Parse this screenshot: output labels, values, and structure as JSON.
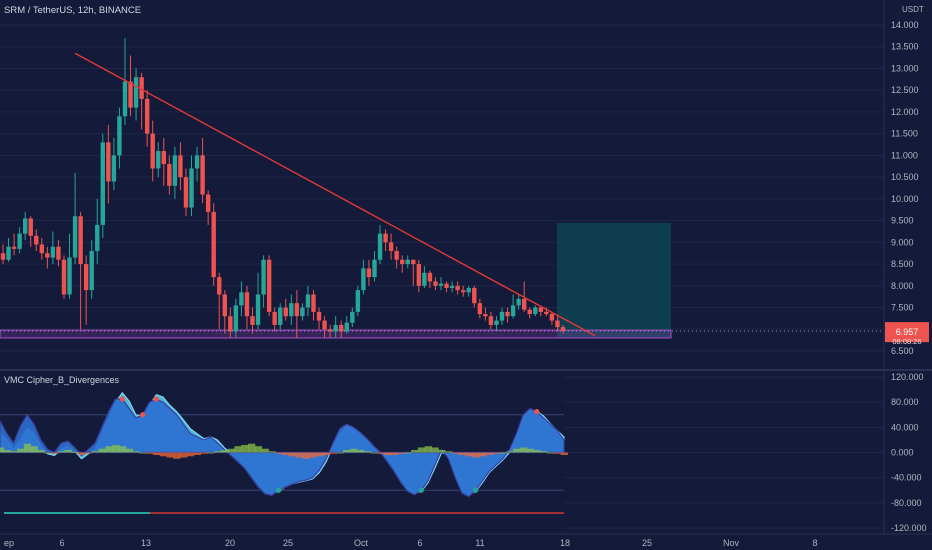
{
  "header": {
    "title": "SRM / TetherUS, 12h, BINANCE",
    "currency": "USDT",
    "indicator_title": "VMC Cipher_B_Divergences"
  },
  "price_axis": {
    "ticks": [
      "14.000",
      "13.500",
      "13.000",
      "12.500",
      "12.000",
      "11.500",
      "11.000",
      "10.500",
      "10.000",
      "9.500",
      "9.000",
      "8.500",
      "8.000",
      "7.500",
      "7.000",
      "6.500"
    ],
    "current_price": "6.957",
    "countdown": "08:08:26"
  },
  "indicator_axis": {
    "ticks": [
      "120.000",
      "80.000",
      "40.000",
      "0.000",
      "-40.000",
      "-80.000",
      "-120.000"
    ]
  },
  "time_axis": {
    "ticks": [
      "ep",
      "6",
      "13",
      "20",
      "25",
      "Oct",
      "6",
      "11",
      "18",
      "25",
      "Nov",
      "8"
    ]
  },
  "colors": {
    "background": "#131a3a",
    "up": "#26a69a",
    "down": "#ef5350",
    "trendline": "#e53935",
    "support_zone": "#b04fd0",
    "target_zone": "#0d3d4f",
    "wave_blue": "#2b6fd1",
    "wave_light": "#5ad2f4",
    "money_flow_up": "#8bc34a",
    "money_flow_down": "#f06a3a"
  },
  "chart_data": {
    "type": "candlestick",
    "title": "SRM / TetherUS, 12h, BINANCE",
    "ylabel": "USDT",
    "ylim": [
      6.3,
      14.4
    ],
    "x_ticks": [
      "ep",
      "6",
      "13",
      "20",
      "25",
      "Oct",
      "6",
      "11",
      "18",
      "25",
      "Nov",
      "8"
    ],
    "candles": [
      [
        8.75,
        8.6,
        8.95,
        8.5
      ],
      [
        8.6,
        8.9,
        9.1,
        8.55
      ],
      [
        8.9,
        8.85,
        9.2,
        8.7
      ],
      [
        8.85,
        9.2,
        9.35,
        8.75
      ],
      [
        9.2,
        9.55,
        9.7,
        9.05
      ],
      [
        9.55,
        9.15,
        9.6,
        8.9
      ],
      [
        9.15,
        8.95,
        9.3,
        8.8
      ],
      [
        8.95,
        8.75,
        9.1,
        8.6
      ],
      [
        8.75,
        8.65,
        8.9,
        8.4
      ],
      [
        8.65,
        8.9,
        9.25,
        8.5
      ],
      [
        8.9,
        8.6,
        9.05,
        8.45
      ],
      [
        8.6,
        7.8,
        8.7,
        7.7
      ],
      [
        7.8,
        8.65,
        9.2,
        7.7
      ],
      [
        8.65,
        9.6,
        10.6,
        8.5
      ],
      [
        9.6,
        8.5,
        9.7,
        7.0
      ],
      [
        8.5,
        7.9,
        8.7,
        7.1
      ],
      [
        7.9,
        8.8,
        9.05,
        7.7
      ],
      [
        8.8,
        9.4,
        10.0,
        8.5
      ],
      [
        9.4,
        11.3,
        11.5,
        9.1
      ],
      [
        11.3,
        10.4,
        11.7,
        9.9
      ],
      [
        10.4,
        11.0,
        11.4,
        10.2
      ],
      [
        11.0,
        11.9,
        12.1,
        10.7
      ],
      [
        11.9,
        12.7,
        13.7,
        11.7
      ],
      [
        12.7,
        12.1,
        13.3,
        11.9
      ],
      [
        12.1,
        12.8,
        13.0,
        11.8
      ],
      [
        12.8,
        12.3,
        12.9,
        11.6
      ],
      [
        12.3,
        11.5,
        12.5,
        11.2
      ],
      [
        11.5,
        10.7,
        11.8,
        10.4
      ],
      [
        10.7,
        11.1,
        11.3,
        10.5
      ],
      [
        11.1,
        10.8,
        11.4,
        10.3
      ],
      [
        10.8,
        10.3,
        11.0,
        10.1
      ],
      [
        10.3,
        11.0,
        11.2,
        10.0
      ],
      [
        11.0,
        10.5,
        11.3,
        10.2
      ],
      [
        10.5,
        9.8,
        10.7,
        9.6
      ],
      [
        9.8,
        10.7,
        11.0,
        9.6
      ],
      [
        10.7,
        11.0,
        11.2,
        10.4
      ],
      [
        11.0,
        10.1,
        11.4,
        9.9
      ],
      [
        10.1,
        9.7,
        10.2,
        9.4
      ],
      [
        9.7,
        8.2,
        9.9,
        8.0
      ],
      [
        8.2,
        7.8,
        8.3,
        7.0
      ],
      [
        7.8,
        7.3,
        7.9,
        6.9
      ],
      [
        7.3,
        6.95,
        7.5,
        6.8
      ],
      [
        6.95,
        7.55,
        7.7,
        6.8
      ],
      [
        7.55,
        7.85,
        8.1,
        7.3
      ],
      [
        7.85,
        7.3,
        8.0,
        7.0
      ],
      [
        7.3,
        7.1,
        7.5,
        6.9
      ],
      [
        7.1,
        7.8,
        8.3,
        7.0
      ],
      [
        7.8,
        8.6,
        8.7,
        7.5
      ],
      [
        8.6,
        7.4,
        8.7,
        7.3
      ],
      [
        7.4,
        7.1,
        7.5,
        6.95
      ],
      [
        7.1,
        7.5,
        7.6,
        7.0
      ],
      [
        7.5,
        7.3,
        7.7,
        7.2
      ],
      [
        7.3,
        7.6,
        7.8,
        7.1
      ],
      [
        7.6,
        7.3,
        7.9,
        6.8
      ],
      [
        7.3,
        7.5,
        7.6,
        7.2
      ],
      [
        7.5,
        7.8,
        8.0,
        7.3
      ],
      [
        7.8,
        7.4,
        7.9,
        7.2
      ],
      [
        7.4,
        7.2,
        7.5,
        7.0
      ],
      [
        7.2,
        7.0,
        7.3,
        6.8
      ],
      [
        7.0,
        6.95,
        7.1,
        6.8
      ],
      [
        6.95,
        7.1,
        7.3,
        6.8
      ],
      [
        7.1,
        6.95,
        7.2,
        6.8
      ],
      [
        6.95,
        7.15,
        7.3,
        6.9
      ],
      [
        7.15,
        7.4,
        7.5,
        7.05
      ],
      [
        7.4,
        7.9,
        8.0,
        7.3
      ],
      [
        7.9,
        8.4,
        8.6,
        7.8
      ],
      [
        8.4,
        8.2,
        8.6,
        8.0
      ],
      [
        8.2,
        8.6,
        8.8,
        8.1
      ],
      [
        8.6,
        9.2,
        9.4,
        8.5
      ],
      [
        9.2,
        9.0,
        9.3,
        8.8
      ],
      [
        9.0,
        8.8,
        9.2,
        8.6
      ],
      [
        8.8,
        8.6,
        8.9,
        8.4
      ],
      [
        8.6,
        8.5,
        8.7,
        8.3
      ],
      [
        8.5,
        8.6,
        8.7,
        8.4
      ],
      [
        8.6,
        8.5,
        8.6,
        8.0
      ],
      [
        8.5,
        8.0,
        8.6,
        7.85
      ],
      [
        8.0,
        8.3,
        8.45,
        7.95
      ],
      [
        8.3,
        8.1,
        8.35,
        7.95
      ],
      [
        8.1,
        8.0,
        8.2,
        7.9
      ],
      [
        8.0,
        8.05,
        8.2,
        7.9
      ],
      [
        8.05,
        7.95,
        8.1,
        7.85
      ],
      [
        7.95,
        8.0,
        8.1,
        7.85
      ],
      [
        8.0,
        7.9,
        8.1,
        7.8
      ],
      [
        7.9,
        7.85,
        8.0,
        7.75
      ],
      [
        7.85,
        7.95,
        8.0,
        7.75
      ],
      [
        7.95,
        7.6,
        8.0,
        7.5
      ],
      [
        7.6,
        7.35,
        7.7,
        7.25
      ],
      [
        7.35,
        7.3,
        7.5,
        7.2
      ],
      [
        7.3,
        7.1,
        7.4,
        7.0
      ],
      [
        7.1,
        7.2,
        7.3,
        6.95
      ],
      [
        7.2,
        7.4,
        7.5,
        7.1
      ],
      [
        7.4,
        7.3,
        7.5,
        7.15
      ],
      [
        7.3,
        7.55,
        7.8,
        7.25
      ],
      [
        7.55,
        7.7,
        7.8,
        7.45
      ],
      [
        7.7,
        7.45,
        8.1,
        7.4
      ],
      [
        7.45,
        7.35,
        7.5,
        7.25
      ],
      [
        7.35,
        7.5,
        7.55,
        7.3
      ],
      [
        7.5,
        7.4,
        7.55,
        7.3
      ],
      [
        7.4,
        7.35,
        7.5,
        7.3
      ],
      [
        7.35,
        7.2,
        7.4,
        7.1
      ],
      [
        7.2,
        7.05,
        7.3,
        6.95
      ],
      [
        7.05,
        6.96,
        7.1,
        6.9
      ]
    ],
    "trendline": {
      "from_price": 13.35,
      "to_price": 6.85
    },
    "support_zone": {
      "low": 6.8,
      "high": 6.98
    },
    "target_zone": {
      "low": 6.8,
      "high": 9.45
    },
    "indicator": {
      "name": "VMC Cipher_B_Divergences",
      "ylim": [
        -120,
        120
      ],
      "levels": [
        60,
        0,
        -60
      ],
      "wave1": [
        50,
        30,
        15,
        42,
        60,
        45,
        20,
        5,
        0,
        15,
        18,
        8,
        -5,
        5,
        15,
        40,
        65,
        85,
        85,
        70,
        55,
        60,
        80,
        85,
        80,
        70,
        60,
        45,
        30,
        25,
        20,
        25,
        15,
        5,
        -5,
        -15,
        -25,
        -40,
        -55,
        -66,
        -68,
        -60,
        -55,
        -50,
        -46,
        -44,
        -40,
        -28,
        -10,
        15,
        38,
        45,
        40,
        32,
        22,
        10,
        0,
        -15,
        -30,
        -48,
        -62,
        -67,
        -60,
        -45,
        -20,
        5,
        -10,
        -40,
        -65,
        -70,
        -60,
        -45,
        -30,
        -20,
        -10,
        5,
        30,
        60,
        70,
        65,
        55,
        45,
        35,
        20
      ],
      "wave2": [
        30,
        20,
        5,
        20,
        38,
        30,
        10,
        -2,
        -5,
        5,
        10,
        2,
        -10,
        -2,
        5,
        30,
        55,
        80,
        95,
        82,
        60,
        58,
        75,
        92,
        88,
        75,
        65,
        52,
        38,
        30,
        22,
        25,
        20,
        8,
        -2,
        -10,
        -22,
        -35,
        -50,
        -62,
        -66,
        -62,
        -55,
        -50,
        -47,
        -45,
        -42,
        -32,
        -15,
        10,
        30,
        42,
        40,
        32,
        22,
        10,
        0,
        -10,
        -25,
        -42,
        -58,
        -66,
        -62,
        -48,
        -25,
        0,
        -5,
        -35,
        -60,
        -68,
        -62,
        -48,
        -32,
        -22,
        -12,
        0,
        25,
        55,
        68,
        66,
        58,
        46,
        35,
        25
      ],
      "money_flow": [
        8,
        4,
        2,
        6,
        14,
        10,
        4,
        0,
        -2,
        2,
        4,
        1,
        -4,
        -1,
        2,
        6,
        10,
        12,
        10,
        6,
        2,
        0,
        -2,
        -4,
        -6,
        -8,
        -10,
        -8,
        -6,
        -4,
        -2,
        0,
        2,
        4,
        6,
        10,
        12,
        14,
        10,
        6,
        2,
        -2,
        -4,
        -6,
        -8,
        -10,
        -8,
        -6,
        -4,
        -2,
        0,
        4,
        6,
        4,
        2,
        0,
        -2,
        -4,
        -4,
        -2,
        0,
        4,
        8,
        10,
        8,
        4,
        2,
        -2,
        -4,
        -6,
        -8,
        -6,
        -4,
        -2,
        0,
        2,
        6,
        8,
        6,
        4,
        2,
        0,
        -2,
        -4
      ]
    }
  }
}
